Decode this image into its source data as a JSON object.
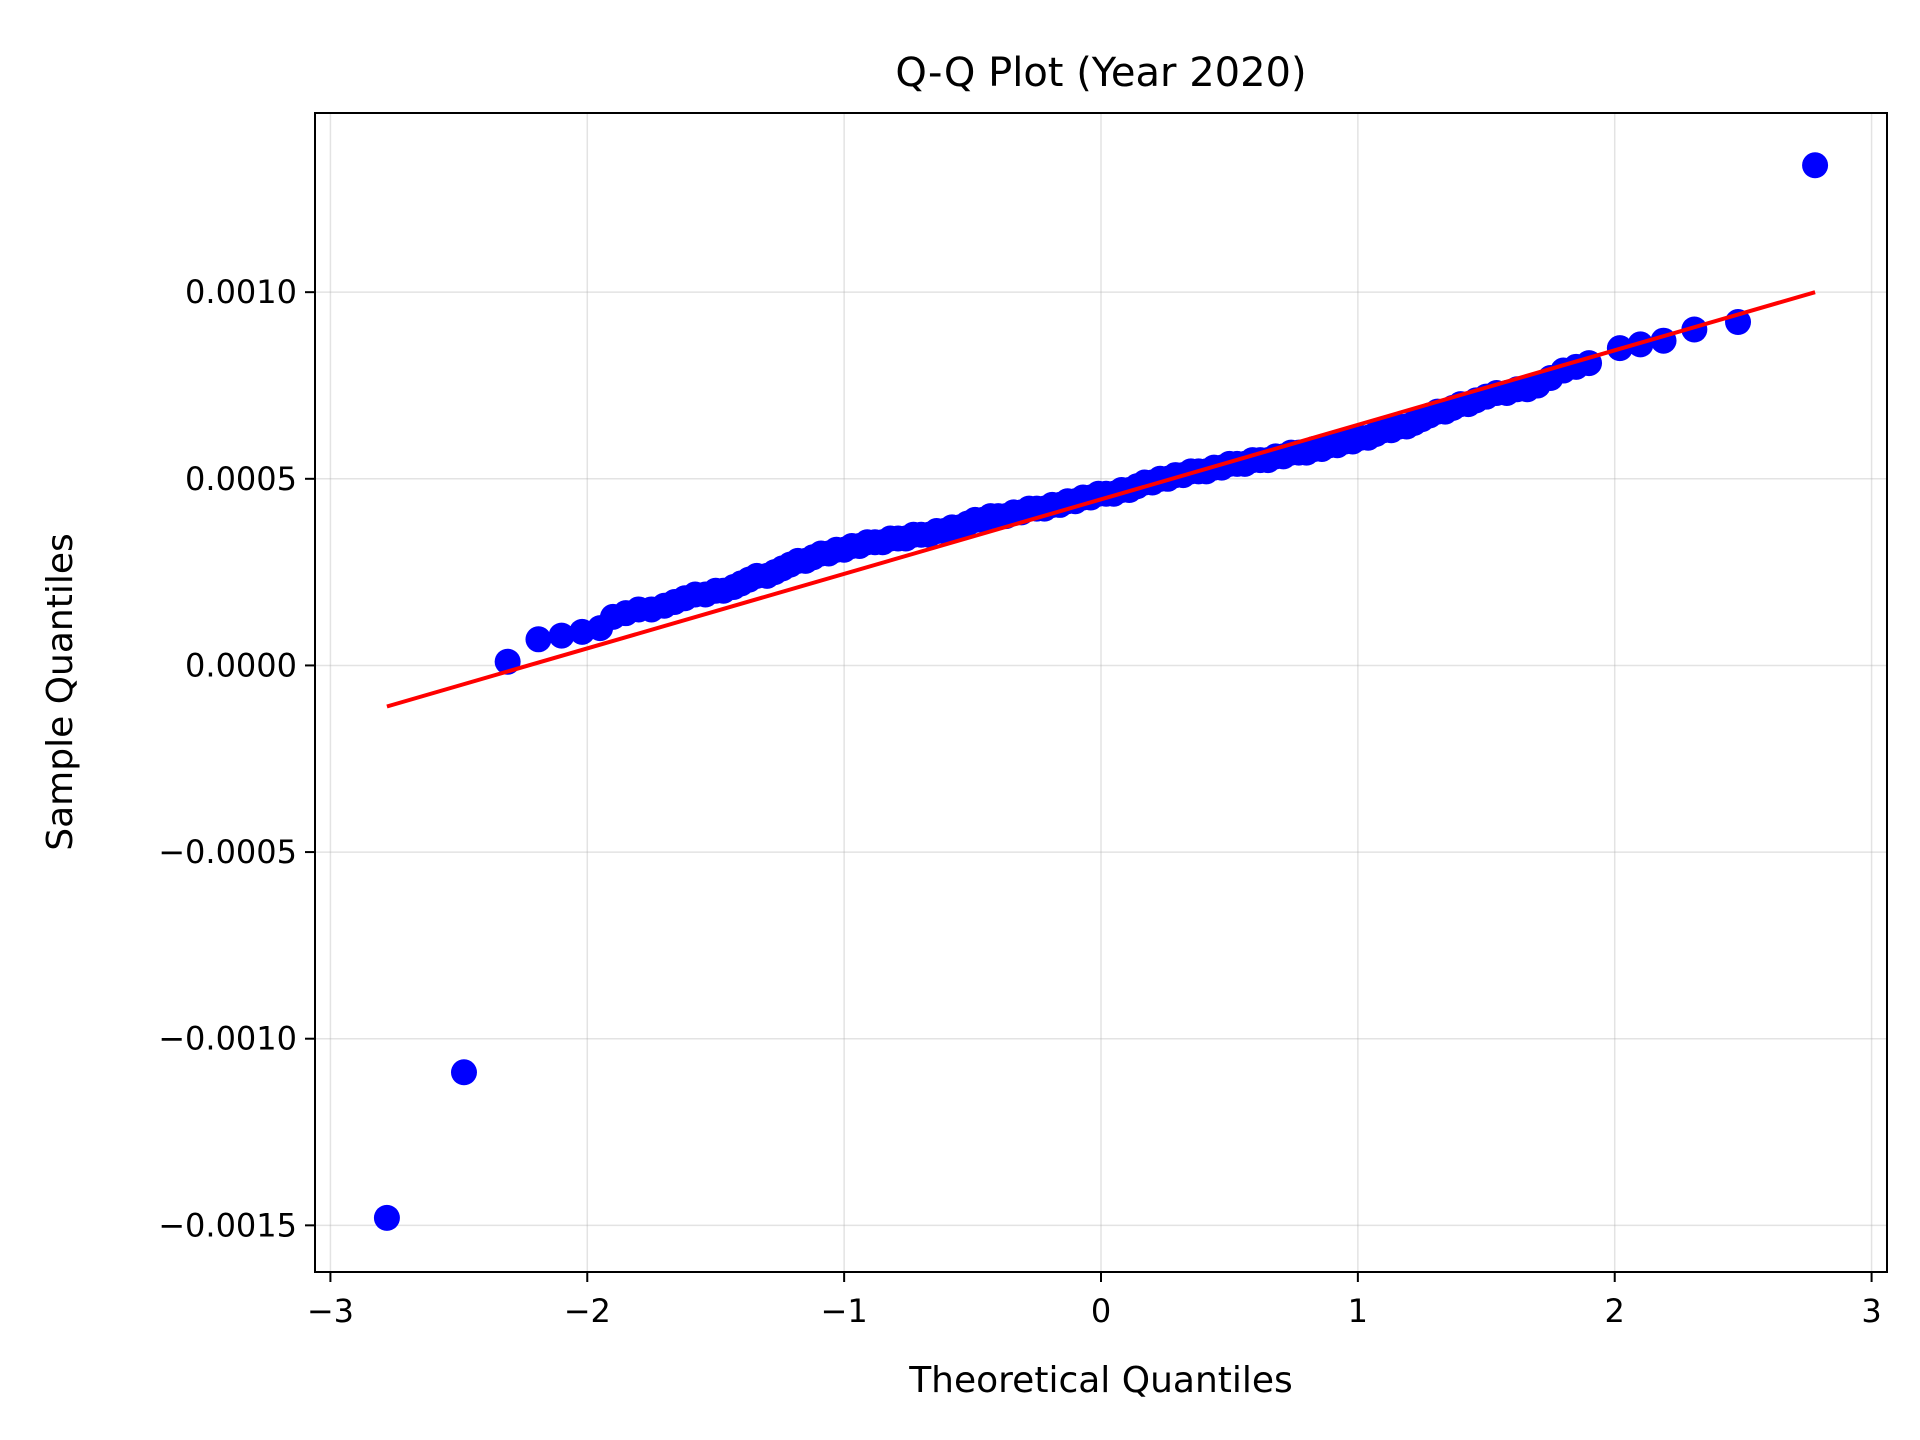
{
  "chart_data": {
    "type": "scatter",
    "title": "Q-Q Plot (Year 2020)",
    "xlabel": "Theoretical Quantiles",
    "ylabel": "Sample Quantiles",
    "xlim": [
      -3.06,
      3.06
    ],
    "ylim": [
      -0.001625,
      0.00148
    ],
    "x_ticks": [
      -3,
      -2,
      -1,
      0,
      1,
      2,
      3
    ],
    "x_tick_labels": [
      "−3",
      "−2",
      "−1",
      "0",
      "1",
      "2",
      "3"
    ],
    "y_ticks": [
      -0.0015,
      -0.001,
      -0.0005,
      0.0,
      0.0005,
      0.001
    ],
    "y_tick_labels": [
      "−0.0015",
      "−0.0010",
      "−0.0005",
      "0.0000",
      "0.0005",
      "0.0010"
    ],
    "grid": true,
    "series": [
      {
        "kind": "points",
        "color": "#0000ff",
        "points": [
          [
            -2.78,
            -0.00148
          ],
          [
            -2.48,
            -0.00109
          ],
          [
            -2.31,
            1e-05
          ],
          [
            -2.19,
            7e-05
          ],
          [
            -2.1,
            8e-05
          ],
          [
            -2.02,
            9e-05
          ],
          [
            -1.95,
            0.0001
          ],
          [
            -1.9,
            0.00013
          ],
          [
            -1.85,
            0.00014
          ],
          [
            -1.8,
            0.00015
          ],
          [
            -1.75,
            0.00015
          ],
          [
            -1.7,
            0.00016
          ],
          [
            -1.66,
            0.00017
          ],
          [
            -1.62,
            0.00018
          ],
          [
            -1.58,
            0.00019
          ],
          [
            -1.54,
            0.00019
          ],
          [
            -1.5,
            0.0002
          ],
          [
            -1.47,
            0.0002
          ],
          [
            -1.43,
            0.00021
          ],
          [
            -1.4,
            0.00022
          ],
          [
            -1.37,
            0.00023
          ],
          [
            -1.34,
            0.00024
          ],
          [
            -1.3,
            0.00024
          ],
          [
            -1.27,
            0.00025
          ],
          [
            -1.24,
            0.00026
          ],
          [
            -1.21,
            0.00027
          ],
          [
            -1.18,
            0.00028
          ],
          [
            -1.15,
            0.00028
          ],
          [
            -1.12,
            0.00029
          ],
          [
            -1.09,
            0.0003
          ],
          [
            -1.06,
            0.0003
          ],
          [
            -1.03,
            0.00031
          ],
          [
            -1.0,
            0.00031
          ],
          [
            -0.97,
            0.00032
          ],
          [
            -0.94,
            0.00032
          ],
          [
            -0.91,
            0.00033
          ],
          [
            -0.88,
            0.00033
          ],
          [
            -0.85,
            0.00033
          ],
          [
            -0.82,
            0.00034
          ],
          [
            -0.79,
            0.00034
          ],
          [
            -0.76,
            0.00034
          ],
          [
            -0.73,
            0.00035
          ],
          [
            -0.7,
            0.00035
          ],
          [
            -0.67,
            0.00035
          ],
          [
            -0.64,
            0.00036
          ],
          [
            -0.61,
            0.00036
          ],
          [
            -0.58,
            0.00037
          ],
          [
            -0.55,
            0.00037
          ],
          [
            -0.52,
            0.00038
          ],
          [
            -0.49,
            0.00039
          ],
          [
            -0.46,
            0.00039
          ],
          [
            -0.43,
            0.0004
          ],
          [
            -0.4,
            0.0004
          ],
          [
            -0.37,
            0.0004
          ],
          [
            -0.34,
            0.00041
          ],
          [
            -0.31,
            0.00041
          ],
          [
            -0.28,
            0.00042
          ],
          [
            -0.25,
            0.00042
          ],
          [
            -0.22,
            0.00042
          ],
          [
            -0.19,
            0.00043
          ],
          [
            -0.16,
            0.00043
          ],
          [
            -0.13,
            0.00044
          ],
          [
            -0.1,
            0.00044
          ],
          [
            -0.07,
            0.00045
          ],
          [
            -0.04,
            0.00045
          ],
          [
            -0.01,
            0.00046
          ],
          [
            0.02,
            0.00046
          ],
          [
            0.05,
            0.00046
          ],
          [
            0.08,
            0.00047
          ],
          [
            0.11,
            0.00047
          ],
          [
            0.14,
            0.00048
          ],
          [
            0.17,
            0.00049
          ],
          [
            0.2,
            0.00049
          ],
          [
            0.23,
            0.0005
          ],
          [
            0.26,
            0.0005
          ],
          [
            0.29,
            0.00051
          ],
          [
            0.32,
            0.00051
          ],
          [
            0.35,
            0.00052
          ],
          [
            0.38,
            0.00052
          ],
          [
            0.41,
            0.00052
          ],
          [
            0.44,
            0.00053
          ],
          [
            0.47,
            0.00053
          ],
          [
            0.5,
            0.00054
          ],
          [
            0.53,
            0.00054
          ],
          [
            0.56,
            0.00054
          ],
          [
            0.59,
            0.00055
          ],
          [
            0.62,
            0.00055
          ],
          [
            0.65,
            0.00055
          ],
          [
            0.68,
            0.00056
          ],
          [
            0.71,
            0.00056
          ],
          [
            0.74,
            0.00057
          ],
          [
            0.77,
            0.00057
          ],
          [
            0.8,
            0.00057
          ],
          [
            0.83,
            0.00058
          ],
          [
            0.86,
            0.00058
          ],
          [
            0.89,
            0.00059
          ],
          [
            0.92,
            0.00059
          ],
          [
            0.95,
            0.0006
          ],
          [
            0.98,
            0.0006
          ],
          [
            1.01,
            0.00061
          ],
          [
            1.04,
            0.00061
          ],
          [
            1.07,
            0.00062
          ],
          [
            1.1,
            0.00063
          ],
          [
            1.13,
            0.00063
          ],
          [
            1.16,
            0.00064
          ],
          [
            1.19,
            0.00064
          ],
          [
            1.22,
            0.00065
          ],
          [
            1.25,
            0.00066
          ],
          [
            1.28,
            0.00067
          ],
          [
            1.31,
            0.00068
          ],
          [
            1.34,
            0.00068
          ],
          [
            1.37,
            0.00069
          ],
          [
            1.4,
            0.0007
          ],
          [
            1.43,
            0.0007
          ],
          [
            1.46,
            0.00071
          ],
          [
            1.5,
            0.00072
          ],
          [
            1.54,
            0.00073
          ],
          [
            1.58,
            0.00073
          ],
          [
            1.62,
            0.00074
          ],
          [
            1.66,
            0.00074
          ],
          [
            1.7,
            0.00075
          ],
          [
            1.75,
            0.00077
          ],
          [
            1.8,
            0.00079
          ],
          [
            1.85,
            0.0008
          ],
          [
            1.9,
            0.00081
          ],
          [
            2.02,
            0.00085
          ],
          [
            2.1,
            0.00086
          ],
          [
            2.19,
            0.00087
          ],
          [
            2.31,
            0.0009
          ],
          [
            2.48,
            0.00092
          ],
          [
            2.78,
            0.00134
          ]
        ]
      },
      {
        "kind": "line",
        "color": "#ff0000",
        "points": [
          [
            -2.78,
            -0.00011
          ],
          [
            2.78,
            0.001
          ]
        ]
      }
    ]
  }
}
